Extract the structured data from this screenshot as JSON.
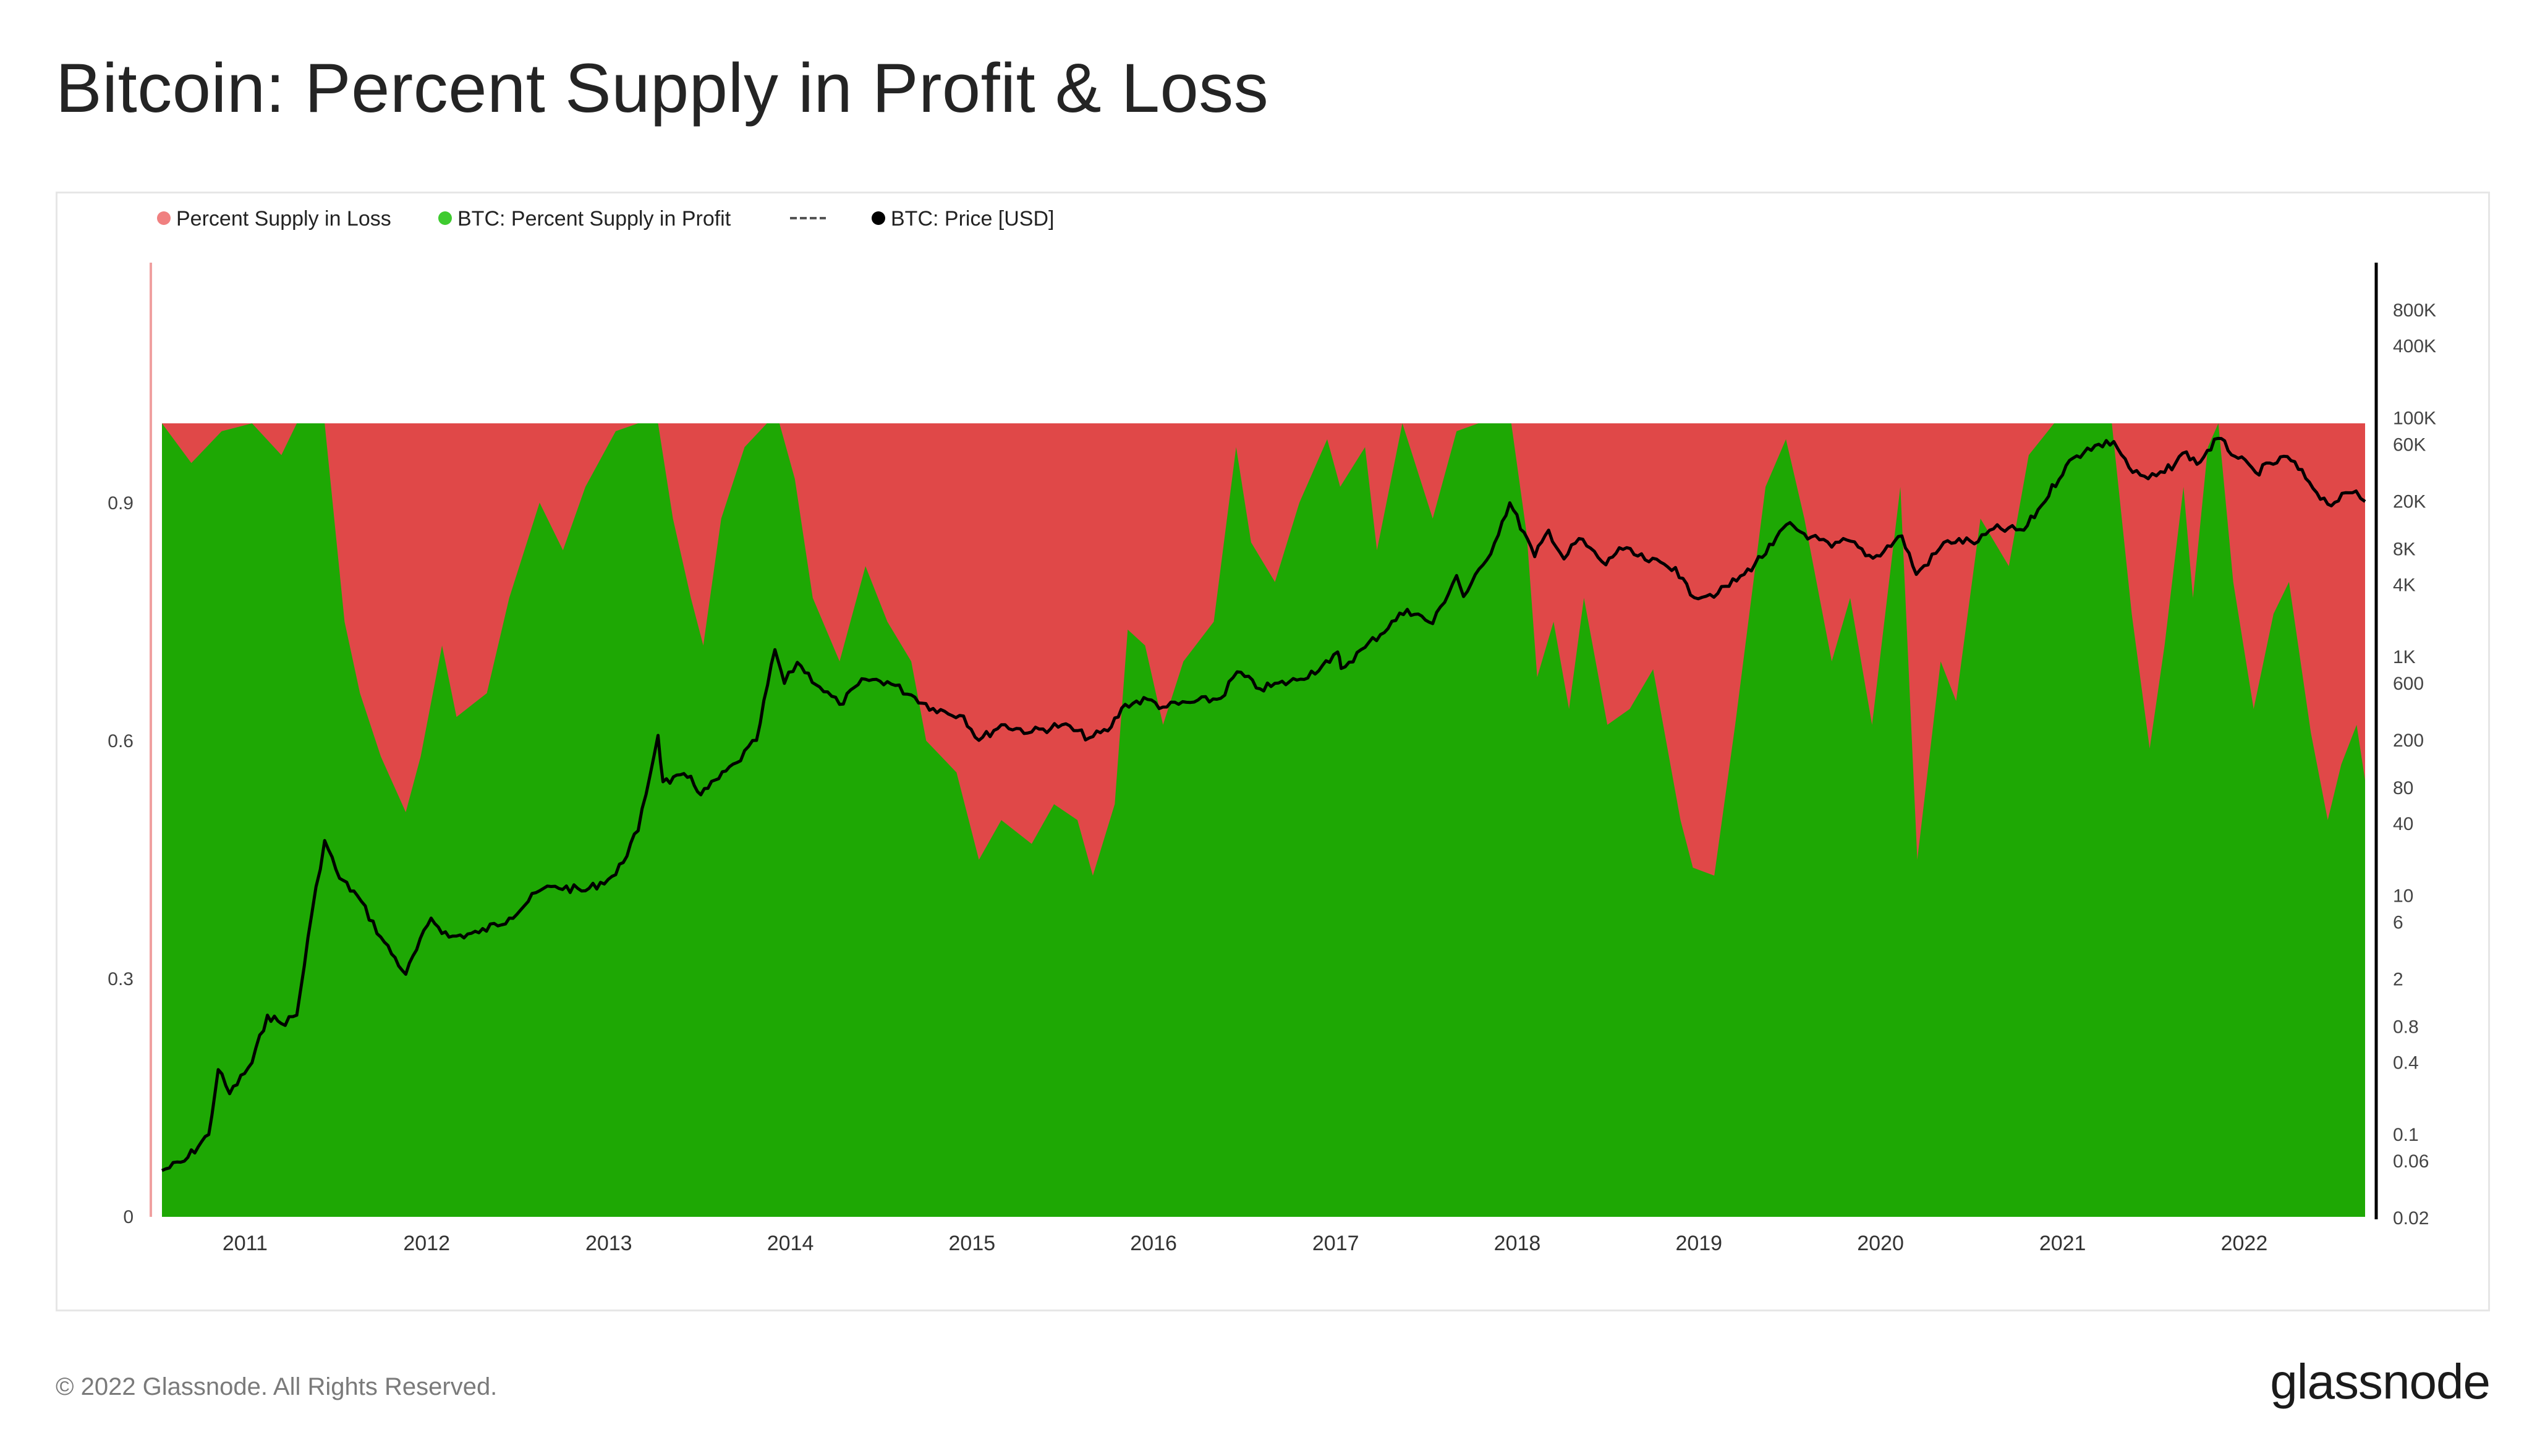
{
  "page": {
    "title": "Bitcoin: Percent Supply in Profit & Loss",
    "copyright": "© 2022 Glassnode. All Rights Reserved.",
    "brand": "glassnode"
  },
  "colors": {
    "loss": "#e04848",
    "profit": "#1ea804",
    "price": "#000000",
    "loss_axis": "#f0a0a0",
    "legend_loss_dot": "#f08080",
    "legend_profit_dot": "#3ecb2f"
  },
  "chart_data": {
    "type": "area",
    "title": "",
    "legend_position": "top-left",
    "legend": [
      {
        "label": "Percent Supply in Loss",
        "marker": "dot",
        "color": "#f08080"
      },
      {
        "label": "BTC: Percent Supply in Profit",
        "marker": "dot",
        "color": "#3ecb2f"
      },
      {
        "label": "",
        "marker": "dash",
        "color": "#555555"
      },
      {
        "label": "BTC: Price [USD]",
        "marker": "dot",
        "color": "#000000"
      }
    ],
    "x_ticks": [
      "2011",
      "2012",
      "2013",
      "2014",
      "2015",
      "2016",
      "2017",
      "2018",
      "2019",
      "2020",
      "2021",
      "2022"
    ],
    "x_range": [
      "2010-07-18",
      "2022-09-01"
    ],
    "left_axis": {
      "ticks": [
        "0",
        "0.3",
        "0.6",
        "0.9"
      ],
      "values": [
        0,
        0.3,
        0.6,
        0.9
      ],
      "range": [
        0,
        1.2
      ]
    },
    "right_axis": {
      "scale": "log",
      "ticks": [
        "800K",
        "400K",
        "100K",
        "60K",
        "20K",
        "8K",
        "4K",
        "1K",
        "600",
        "200",
        "80",
        "40",
        "10",
        "6",
        "2",
        "0.8",
        "0.4",
        "0.1",
        "0.06",
        "0.02"
      ],
      "values": [
        800000,
        400000,
        100000,
        60000,
        20000,
        8000,
        4000,
        1000,
        600,
        200,
        80,
        40,
        10,
        6,
        2,
        0.8,
        0.4,
        0.1,
        0.06,
        0.02
      ],
      "range": [
        0.02,
        2000000
      ]
    },
    "series": [
      {
        "name": "BTC: Percent Supply in Profit",
        "kind": "stacked-area",
        "points": [
          [
            "2010-07-18",
            1.0
          ],
          [
            "2010-09-15",
            0.95
          ],
          [
            "2010-11-15",
            0.99
          ],
          [
            "2011-01-15",
            1.0
          ],
          [
            "2011-03-15",
            0.96
          ],
          [
            "2011-04-15",
            1.0
          ],
          [
            "2011-06-10",
            1.0
          ],
          [
            "2011-07-20",
            0.75
          ],
          [
            "2011-08-20",
            0.66
          ],
          [
            "2011-10-01",
            0.58
          ],
          [
            "2011-11-20",
            0.51
          ],
          [
            "2011-12-20",
            0.58
          ],
          [
            "2012-02-01",
            0.72
          ],
          [
            "2012-03-01",
            0.63
          ],
          [
            "2012-05-01",
            0.66
          ],
          [
            "2012-06-15",
            0.78
          ],
          [
            "2012-08-15",
            0.9
          ],
          [
            "2012-10-01",
            0.84
          ],
          [
            "2012-11-15",
            0.92
          ],
          [
            "2013-01-15",
            0.99
          ],
          [
            "2013-03-01",
            1.0
          ],
          [
            "2013-04-10",
            1.0
          ],
          [
            "2013-05-10",
            0.88
          ],
          [
            "2013-06-15",
            0.78
          ],
          [
            "2013-07-10",
            0.72
          ],
          [
            "2013-08-15",
            0.88
          ],
          [
            "2013-10-01",
            0.97
          ],
          [
            "2013-11-15",
            1.0
          ],
          [
            "2013-12-10",
            1.0
          ],
          [
            "2014-01-10",
            0.93
          ],
          [
            "2014-02-15",
            0.78
          ],
          [
            "2014-04-10",
            0.7
          ],
          [
            "2014-06-01",
            0.82
          ],
          [
            "2014-07-15",
            0.75
          ],
          [
            "2014-09-01",
            0.7
          ],
          [
            "2014-10-01",
            0.6
          ],
          [
            "2014-12-01",
            0.56
          ],
          [
            "2015-01-15",
            0.45
          ],
          [
            "2015-03-01",
            0.5
          ],
          [
            "2015-05-01",
            0.47
          ],
          [
            "2015-06-15",
            0.52
          ],
          [
            "2015-08-01",
            0.5
          ],
          [
            "2015-09-01",
            0.43
          ],
          [
            "2015-10-15",
            0.52
          ],
          [
            "2015-11-10",
            0.74
          ],
          [
            "2015-12-15",
            0.72
          ],
          [
            "2016-01-20",
            0.62
          ],
          [
            "2016-03-01",
            0.7
          ],
          [
            "2016-05-01",
            0.75
          ],
          [
            "2016-06-15",
            0.97
          ],
          [
            "2016-07-15",
            0.85
          ],
          [
            "2016-09-01",
            0.8
          ],
          [
            "2016-10-20",
            0.9
          ],
          [
            "2016-12-15",
            0.98
          ],
          [
            "2017-01-10",
            0.92
          ],
          [
            "2017-03-01",
            0.97
          ],
          [
            "2017-03-25",
            0.84
          ],
          [
            "2017-05-15",
            1.0
          ],
          [
            "2017-07-15",
            0.88
          ],
          [
            "2017-09-01",
            0.99
          ],
          [
            "2017-10-15",
            1.0
          ],
          [
            "2017-12-20",
            1.0
          ],
          [
            "2018-01-20",
            0.86
          ],
          [
            "2018-02-10",
            0.68
          ],
          [
            "2018-03-15",
            0.75
          ],
          [
            "2018-04-15",
            0.64
          ],
          [
            "2018-05-15",
            0.78
          ],
          [
            "2018-07-01",
            0.62
          ],
          [
            "2018-08-15",
            0.64
          ],
          [
            "2018-10-01",
            0.69
          ],
          [
            "2018-11-25",
            0.5
          ],
          [
            "2018-12-20",
            0.44
          ],
          [
            "2019-02-01",
            0.43
          ],
          [
            "2019-03-15",
            0.62
          ],
          [
            "2019-05-15",
            0.92
          ],
          [
            "2019-06-25",
            0.98
          ],
          [
            "2019-08-01",
            0.88
          ],
          [
            "2019-09-25",
            0.7
          ],
          [
            "2019-11-01",
            0.78
          ],
          [
            "2019-12-15",
            0.62
          ],
          [
            "2020-02-10",
            0.92
          ],
          [
            "2020-03-15",
            0.45
          ],
          [
            "2020-05-01",
            0.7
          ],
          [
            "2020-06-01",
            0.65
          ],
          [
            "2020-07-20",
            0.88
          ],
          [
            "2020-09-15",
            0.82
          ],
          [
            "2020-10-25",
            0.96
          ],
          [
            "2020-12-15",
            1.0
          ],
          [
            "2021-02-15",
            1.0
          ],
          [
            "2021-04-10",
            1.0
          ],
          [
            "2021-05-20",
            0.76
          ],
          [
            "2021-06-25",
            0.59
          ],
          [
            "2021-07-25",
            0.72
          ],
          [
            "2021-09-01",
            0.92
          ],
          [
            "2021-09-20",
            0.78
          ],
          [
            "2021-10-20",
            0.97
          ],
          [
            "2021-11-10",
            1.0
          ],
          [
            "2021-12-10",
            0.8
          ],
          [
            "2022-01-20",
            0.64
          ],
          [
            "2022-03-01",
            0.76
          ],
          [
            "2022-04-01",
            0.8
          ],
          [
            "2022-05-15",
            0.61
          ],
          [
            "2022-06-18",
            0.5
          ],
          [
            "2022-07-15",
            0.57
          ],
          [
            "2022-08-15",
            0.62
          ],
          [
            "2022-09-01",
            0.55
          ]
        ]
      },
      {
        "name": "Percent Supply in Loss",
        "kind": "stacked-area",
        "note_total": 1.0
      },
      {
        "name": "BTC: Price [USD]",
        "kind": "line",
        "axis": "right",
        "points": [
          [
            "2010-07-18",
            0.05
          ],
          [
            "2010-09-01",
            0.06
          ],
          [
            "2010-10-20",
            0.1
          ],
          [
            "2010-11-08",
            0.35
          ],
          [
            "2010-12-01",
            0.22
          ],
          [
            "2011-01-15",
            0.4
          ],
          [
            "2011-02-15",
            1.0
          ],
          [
            "2011-03-15",
            0.85
          ],
          [
            "2011-04-15",
            1.0
          ],
          [
            "2011-05-15",
            7.0
          ],
          [
            "2011-06-10",
            29.0
          ],
          [
            "2011-07-10",
            14.0
          ],
          [
            "2011-08-15",
            10.0
          ],
          [
            "2011-10-01",
            4.5
          ],
          [
            "2011-11-20",
            2.2
          ],
          [
            "2012-01-10",
            6.5
          ],
          [
            "2012-02-15",
            4.5
          ],
          [
            "2012-04-15",
            4.9
          ],
          [
            "2012-06-15",
            6.5
          ],
          [
            "2012-08-15",
            11.0
          ],
          [
            "2012-09-15",
            12.0
          ],
          [
            "2012-11-15",
            11.0
          ],
          [
            "2013-01-15",
            15.0
          ],
          [
            "2013-03-01",
            35.0
          ],
          [
            "2013-04-10",
            220.0
          ],
          [
            "2013-04-20",
            90.0
          ],
          [
            "2013-06-15",
            100.0
          ],
          [
            "2013-07-05",
            70.0
          ],
          [
            "2013-09-15",
            130.0
          ],
          [
            "2013-10-25",
            200.0
          ],
          [
            "2013-12-01",
            1150.0
          ],
          [
            "2013-12-20",
            600.0
          ],
          [
            "2014-01-15",
            900.0
          ],
          [
            "2014-03-01",
            560.0
          ],
          [
            "2014-04-10",
            400.0
          ],
          [
            "2014-06-01",
            650.0
          ],
          [
            "2014-07-15",
            620.0
          ],
          [
            "2014-09-01",
            480.0
          ],
          [
            "2014-10-15",
            370.0
          ],
          [
            "2014-12-15",
            320.0
          ],
          [
            "2015-01-15",
            200.0
          ],
          [
            "2015-03-01",
            270.0
          ],
          [
            "2015-05-01",
            235.0
          ],
          [
            "2015-07-01",
            270.0
          ],
          [
            "2015-08-25",
            210.0
          ],
          [
            "2015-10-01",
            240.0
          ],
          [
            "2015-11-05",
            400.0
          ],
          [
            "2015-12-20",
            440.0
          ],
          [
            "2016-01-20",
            380.0
          ],
          [
            "2016-03-15",
            415.0
          ],
          [
            "2016-05-15",
            450.0
          ],
          [
            "2016-06-17",
            750.0
          ],
          [
            "2016-08-02",
            540.0
          ],
          [
            "2016-10-15",
            640.0
          ],
          [
            "2016-12-20",
            900.0
          ],
          [
            "2017-01-05",
            1100.0
          ],
          [
            "2017-01-12",
            800.0
          ],
          [
            "2017-03-01",
            1200.0
          ],
          [
            "2017-05-25",
            2500.0
          ],
          [
            "2017-07-15",
            1900.0
          ],
          [
            "2017-09-01",
            4800.0
          ],
          [
            "2017-09-15",
            3200.0
          ],
          [
            "2017-11-01",
            6500.0
          ],
          [
            "2017-12-17",
            19500.0
          ],
          [
            "2018-02-05",
            6900.0
          ],
          [
            "2018-03-05",
            11500.0
          ],
          [
            "2018-04-05",
            6600.0
          ],
          [
            "2018-05-05",
            9800.0
          ],
          [
            "2018-06-28",
            5900.0
          ],
          [
            "2018-07-25",
            8200.0
          ],
          [
            "2018-09-15",
            6500.0
          ],
          [
            "2018-11-15",
            5600.0
          ],
          [
            "2018-12-15",
            3300.0
          ],
          [
            "2019-02-08",
            3400.0
          ],
          [
            "2019-04-02",
            4900.0
          ],
          [
            "2019-05-30",
            8700.0
          ],
          [
            "2019-06-26",
            12800.0
          ],
          [
            "2019-08-15",
            10100.0
          ],
          [
            "2019-09-25",
            8300.0
          ],
          [
            "2019-10-26",
            9500.0
          ],
          [
            "2019-12-17",
            6700.0
          ],
          [
            "2020-02-13",
            10300.0
          ],
          [
            "2020-03-13",
            4900.0
          ],
          [
            "2020-05-15",
            9400.0
          ],
          [
            "2020-07-15",
            9200.0
          ],
          [
            "2020-08-15",
            11800.0
          ],
          [
            "2020-10-15",
            11500.0
          ],
          [
            "2020-11-20",
            18600.0
          ],
          [
            "2021-01-08",
            40000.0
          ],
          [
            "2021-02-20",
            56000.0
          ],
          [
            "2021-04-14",
            63500.0
          ],
          [
            "2021-05-22",
            35000.0
          ],
          [
            "2021-06-22",
            31000.0
          ],
          [
            "2021-07-25",
            35000.0
          ],
          [
            "2021-09-07",
            52000.0
          ],
          [
            "2021-09-28",
            41000.0
          ],
          [
            "2021-11-09",
            67500.0
          ],
          [
            "2021-12-20",
            46000.0
          ],
          [
            "2022-01-24",
            35000.0
          ],
          [
            "2022-03-29",
            47500.0
          ],
          [
            "2022-05-12",
            29000.0
          ],
          [
            "2022-06-18",
            19000.0
          ],
          [
            "2022-08-14",
            24500.0
          ],
          [
            "2022-09-01",
            20000.0
          ]
        ]
      }
    ]
  }
}
